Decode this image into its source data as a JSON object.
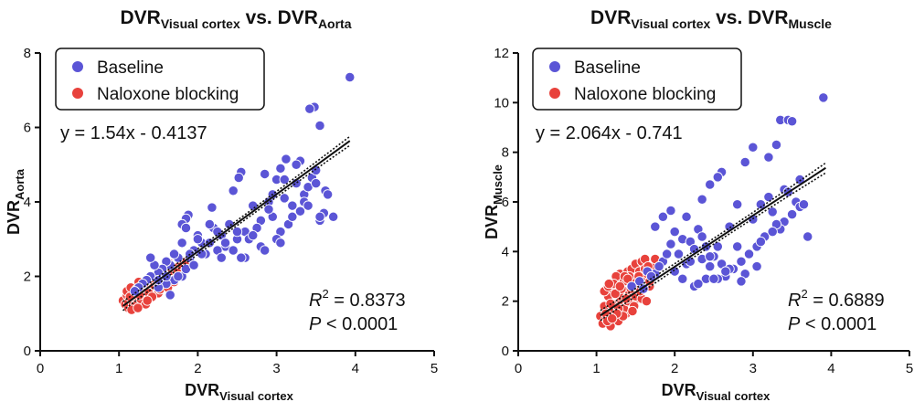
{
  "chart_data": [
    {
      "type": "scatter",
      "title_main": "DVR",
      "title_sub1": "Visual cortex",
      "title_mid": " vs. DVR",
      "title_sub2": "Aorta",
      "xlabel_main": "DVR",
      "xlabel_sub": "Visual cortex",
      "ylabel_main": "DVR",
      "ylabel_sub": "Aorta",
      "xlim": [
        0,
        5
      ],
      "ylim": [
        0,
        8
      ],
      "xticks": [
        0,
        1,
        2,
        3,
        4,
        5
      ],
      "yticks": [
        0,
        2,
        4,
        6,
        8
      ],
      "legend": [
        "Baseline",
        "Naloxone blocking"
      ],
      "equation": "y = 1.54x - 0.4137",
      "fit": {
        "slope": 1.54,
        "intercept": -0.4137,
        "x_range": [
          1.05,
          3.93
        ]
      },
      "ci_offset": 0.12,
      "r2_label": "R",
      "r2_value": " = 0.8373",
      "p_label": "P",
      "p_value": " < 0.0001",
      "series": [
        {
          "name": "Baseline",
          "color": "#5b55d6",
          "x": [
            3.93,
            3.48,
            3.42,
            3.55,
            3.12,
            3.3,
            3.05,
            2.85,
            2.55,
            2.52,
            2.45,
            2.18,
            1.88,
            1.85,
            1.8,
            3.0,
            3.1,
            3.2,
            3.35,
            3.4,
            3.45,
            3.5,
            3.6,
            3.72,
            3.55,
            3.62,
            3.3,
            3.25,
            3.15,
            3.05,
            2.95,
            2.9,
            2.8,
            2.75,
            2.7,
            2.6,
            2.5,
            2.4,
            2.35,
            2.3,
            2.25,
            2.2,
            2.1,
            2.05,
            2.0,
            1.95,
            1.9,
            1.85,
            1.8,
            1.75,
            1.7,
            1.65,
            1.6,
            1.55,
            1.5,
            1.45,
            1.4,
            1.35,
            1.3,
            1.25,
            1.2,
            2.6,
            2.8,
            3.0,
            3.2,
            3.35,
            3.5,
            2.45,
            2.65,
            2.85,
            2.95,
            3.1,
            3.25,
            2.3,
            2.5,
            2.7,
            2.15,
            2.0,
            1.9,
            1.8,
            1.7,
            1.6,
            1.5,
            1.65,
            1.75,
            1.85,
            1.95,
            2.05,
            2.15,
            2.25,
            2.35,
            2.55,
            3.4,
            3.55,
            3.65,
            2.9,
            3.05,
            1.4,
            1.5,
            1.6
          ],
          "y": [
            7.35,
            6.55,
            6.5,
            6.05,
            5.15,
            5.1,
            4.9,
            4.75,
            4.8,
            4.65,
            4.3,
            3.85,
            3.65,
            3.55,
            3.4,
            4.6,
            4.1,
            3.9,
            4.2,
            4.4,
            4.65,
            4.85,
            3.7,
            3.6,
            3.5,
            4.3,
            3.75,
            4.5,
            3.4,
            3.2,
            3.6,
            4.0,
            3.5,
            3.3,
            3.9,
            3.2,
            3.0,
            3.4,
            2.8,
            3.1,
            2.7,
            3.3,
            2.6,
            2.9,
            3.1,
            2.7,
            2.5,
            3.3,
            2.9,
            2.5,
            2.6,
            2.3,
            2.4,
            2.2,
            2.1,
            2.3,
            2.0,
            1.9,
            1.8,
            1.7,
            1.6,
            2.5,
            2.8,
            3.0,
            3.6,
            4.0,
            4.5,
            2.7,
            3.0,
            2.7,
            4.2,
            4.6,
            5.0,
            2.5,
            3.2,
            3.1,
            3.4,
            3.0,
            2.6,
            2.0,
            1.9,
            1.8,
            1.7,
            1.5,
            2.0,
            2.2,
            2.3,
            2.6,
            2.9,
            3.2,
            2.9,
            2.5,
            3.9,
            3.6,
            4.2,
            3.8,
            2.9,
            2.5,
            1.9,
            2.0
          ]
        },
        {
          "name": "Naloxone blocking",
          "color": "#e8423c",
          "x": [
            1.05,
            1.08,
            1.1,
            1.12,
            1.15,
            1.18,
            1.2,
            1.22,
            1.25,
            1.28,
            1.3,
            1.32,
            1.35,
            1.38,
            1.4,
            1.42,
            1.45,
            1.48,
            1.5,
            1.52,
            1.55,
            1.58,
            1.6,
            1.62,
            1.65,
            1.7,
            1.72,
            1.75,
            1.8,
            1.85,
            1.1,
            1.15,
            1.2,
            1.25,
            1.3,
            1.35,
            1.4,
            1.45,
            1.5,
            1.55,
            1.6,
            1.12,
            1.18,
            1.22,
            1.28,
            1.32,
            1.38,
            1.42,
            1.48,
            1.52,
            1.58,
            1.62,
            1.68,
            1.7,
            1.78,
            1.14,
            1.2,
            1.26,
            1.34,
            1.44,
            1.54,
            1.64,
            1.74,
            1.16,
            1.24,
            1.36
          ],
          "y": [
            1.35,
            1.25,
            1.5,
            1.3,
            1.45,
            1.2,
            1.55,
            1.4,
            1.6,
            1.3,
            1.7,
            1.45,
            1.65,
            1.5,
            1.8,
            1.6,
            1.9,
            1.7,
            2.0,
            1.85,
            1.75,
            2.1,
            1.95,
            1.8,
            2.0,
            2.1,
            2.0,
            2.25,
            2.3,
            2.4,
            1.6,
            1.7,
            1.3,
            1.85,
            1.5,
            1.4,
            1.6,
            1.75,
            1.55,
            1.95,
            2.2,
            1.15,
            1.25,
            1.65,
            1.35,
            1.8,
            1.55,
            1.45,
            1.85,
            1.65,
            1.9,
            1.7,
            2.15,
            1.85,
            2.05,
            1.45,
            1.2,
            1.5,
            1.25,
            1.95,
            2.05,
            2.35,
            2.1,
            1.1,
            1.15,
            1.35
          ]
        }
      ]
    },
    {
      "type": "scatter",
      "title_main": "DVR",
      "title_sub1": "Visual cortex",
      "title_mid": " vs. DVR",
      "title_sub2": "Muscle",
      "xlabel_main": "DVR",
      "xlabel_sub": "Visual cortex",
      "ylabel_main": "DVR",
      "ylabel_sub": "Muscle",
      "xlim": [
        0,
        5
      ],
      "ylim": [
        0,
        12
      ],
      "xticks": [
        0,
        1,
        2,
        3,
        4,
        5
      ],
      "yticks": [
        0,
        2,
        4,
        6,
        8,
        10,
        12
      ],
      "legend": [
        "Baseline",
        "Naloxone blocking"
      ],
      "equation": "y = 2.064x - 0.741",
      "fit": {
        "slope": 2.064,
        "intercept": -0.741,
        "x_range": [
          1.05,
          3.93
        ]
      },
      "ci_offset": 0.2,
      "r2_label": "R",
      "r2_value": " = 0.6889",
      "p_label": "P",
      "p_value": " < 0.0001",
      "series": [
        {
          "name": "Baseline",
          "color": "#5b55d6",
          "x": [
            3.9,
            3.35,
            3.45,
            3.5,
            3.0,
            2.9,
            3.3,
            3.2,
            3.6,
            3.7,
            2.6,
            2.55,
            2.45,
            2.35,
            2.15,
            1.95,
            1.85,
            1.75,
            2.0,
            2.1,
            2.2,
            2.3,
            2.4,
            2.5,
            2.7,
            2.8,
            3.1,
            3.25,
            3.4,
            3.55,
            3.6,
            3.5,
            3.35,
            3.15,
            3.05,
            2.95,
            2.85,
            2.75,
            2.65,
            2.55,
            2.45,
            2.35,
            2.25,
            2.15,
            2.05,
            1.95,
            1.85,
            1.75,
            1.65,
            1.55,
            1.45,
            2.4,
            2.6,
            2.8,
            3.0,
            3.2,
            3.4,
            2.25,
            2.5,
            2.7,
            2.9,
            3.1,
            3.3,
            1.9,
            2.0,
            2.1,
            2.2,
            2.3,
            1.8,
            1.7,
            1.6,
            2.45,
            2.65,
            2.85,
            3.05,
            3.25,
            3.45,
            3.65,
            2.35,
            2.55
          ],
          "y": [
            10.2,
            9.3,
            9.3,
            9.25,
            8.2,
            7.6,
            8.3,
            7.8,
            6.9,
            4.6,
            7.2,
            7.0,
            6.7,
            6.1,
            5.4,
            5.65,
            5.4,
            5.0,
            4.8,
            4.5,
            4.4,
            4.9,
            4.2,
            3.8,
            5.0,
            5.9,
            5.9,
            5.6,
            5.2,
            6.0,
            5.8,
            5.5,
            4.9,
            4.6,
            4.2,
            3.9,
            3.6,
            3.3,
            3.0,
            2.9,
            3.4,
            3.7,
            4.1,
            3.5,
            3.9,
            4.3,
            3.6,
            3.1,
            3.2,
            2.8,
            2.6,
            2.9,
            3.5,
            4.2,
            5.3,
            6.2,
            6.5,
            2.6,
            2.9,
            3.3,
            3.1,
            4.4,
            5.1,
            3.9,
            3.2,
            2.9,
            3.6,
            2.7,
            3.4,
            3.0,
            2.5,
            3.8,
            3.2,
            2.8,
            3.4,
            4.8,
            6.4,
            5.9,
            4.6,
            4.2
          ]
        },
        {
          "name": "Naloxone blocking",
          "color": "#e8423c",
          "x": [
            1.05,
            1.08,
            1.1,
            1.12,
            1.15,
            1.18,
            1.2,
            1.22,
            1.25,
            1.28,
            1.3,
            1.32,
            1.35,
            1.38,
            1.4,
            1.42,
            1.45,
            1.48,
            1.5,
            1.52,
            1.55,
            1.58,
            1.6,
            1.62,
            1.65,
            1.68,
            1.7,
            1.72,
            1.75,
            1.1,
            1.15,
            1.2,
            1.25,
            1.3,
            1.35,
            1.4,
            1.45,
            1.5,
            1.55,
            1.6,
            1.12,
            1.18,
            1.22,
            1.28,
            1.32,
            1.38,
            1.42,
            1.48,
            1.52,
            1.58,
            1.62,
            1.68,
            1.14,
            1.24,
            1.34,
            1.44,
            1.54,
            1.64,
            1.16,
            1.26,
            1.36,
            1.46,
            1.56,
            1.66,
            1.2,
            1.3,
            1.4
          ],
          "y": [
            1.4,
            1.1,
            1.8,
            1.3,
            2.2,
            1.0,
            2.5,
            1.6,
            2.9,
            1.2,
            3.1,
            2.0,
            2.8,
            1.5,
            3.2,
            2.4,
            3.3,
            1.9,
            3.5,
            2.7,
            2.3,
            3.6,
            2.9,
            3.7,
            3.1,
            2.6,
            3.0,
            3.4,
            3.7,
            2.4,
            2.6,
            1.9,
            3.0,
            2.2,
            1.7,
            2.0,
            2.8,
            2.2,
            3.2,
            2.5,
            1.5,
            1.9,
            2.7,
            1.7,
            2.5,
            2.1,
            3.0,
            1.8,
            2.6,
            2.1,
            3.3,
            2.8,
            1.2,
            2.3,
            1.4,
            2.5,
            3.0,
            2.0,
            2.7,
            1.5,
            3.0,
            1.6,
            2.4,
            3.4,
            1.3,
            2.6,
            2.9
          ]
        }
      ]
    }
  ]
}
